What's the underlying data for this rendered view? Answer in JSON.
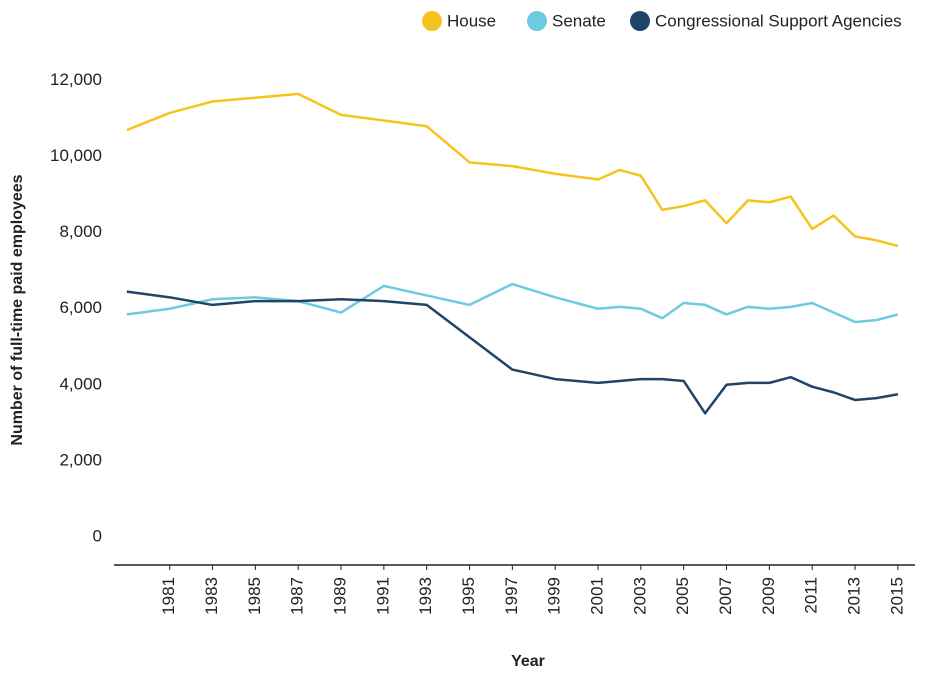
{
  "chart_data": {
    "type": "line",
    "x_label": "Year",
    "y_label": "Number of full-time paid employees",
    "x": [
      1979,
      1981,
      1983,
      1985,
      1987,
      1989,
      1991,
      1993,
      1995,
      1997,
      1999,
      2001,
      2002,
      2003,
      2004,
      2005,
      2006,
      2007,
      2008,
      2009,
      2010,
      2011,
      2012,
      2013,
      2014,
      2015
    ],
    "series": [
      {
        "name": "House",
        "color": "#f6c31c",
        "values": [
          10700,
          11150,
          11450,
          11550,
          11650,
          11100,
          10950,
          10800,
          9850,
          9750,
          9550,
          9400,
          9650,
          9500,
          8600,
          8700,
          8850,
          8250,
          8850,
          8800,
          8950,
          8100,
          8450,
          7900,
          7800,
          7650
        ]
      },
      {
        "name": "Senate",
        "color": "#6dcae0",
        "values": [
          5850,
          6000,
          6250,
          6300,
          6200,
          5900,
          6600,
          6350,
          6100,
          6650,
          6300,
          6000,
          6050,
          6000,
          5750,
          6150,
          6100,
          5850,
          6050,
          6000,
          6050,
          6150,
          5900,
          5650,
          5700,
          5850
        ]
      },
      {
        "name": "Congressional Support Agencies",
        "color": "#1f4468",
        "values": [
          6450,
          6300,
          6100,
          6200,
          6200,
          6250,
          6200,
          6100,
          5250,
          4400,
          4150,
          4050,
          4100,
          4150,
          4150,
          4100,
          3250,
          4000,
          4050,
          4050,
          4200,
          3950,
          3800,
          3600,
          3650,
          3750
        ]
      }
    ],
    "xlim": [
      1978.4,
      2015.8
    ],
    "xticks": [
      1981,
      1983,
      1985,
      1987,
      1989,
      1991,
      1993,
      1995,
      1997,
      1999,
      2001,
      2003,
      2005,
      2007,
      2009,
      2011,
      2013,
      2015
    ],
    "ylim": [
      -740,
      12200
    ],
    "yticks": [
      0,
      {
        "value": 2000,
        "label": "2,000"
      },
      {
        "value": 4000,
        "label": "4,000"
      },
      {
        "value": 6000,
        "label": "6,000"
      },
      {
        "value": 8000,
        "label": "8,000"
      },
      {
        "value": 10000,
        "label": "10,000"
      },
      {
        "value": 12000,
        "label": "12,000"
      }
    ],
    "grid": false,
    "legend": "top-right"
  }
}
